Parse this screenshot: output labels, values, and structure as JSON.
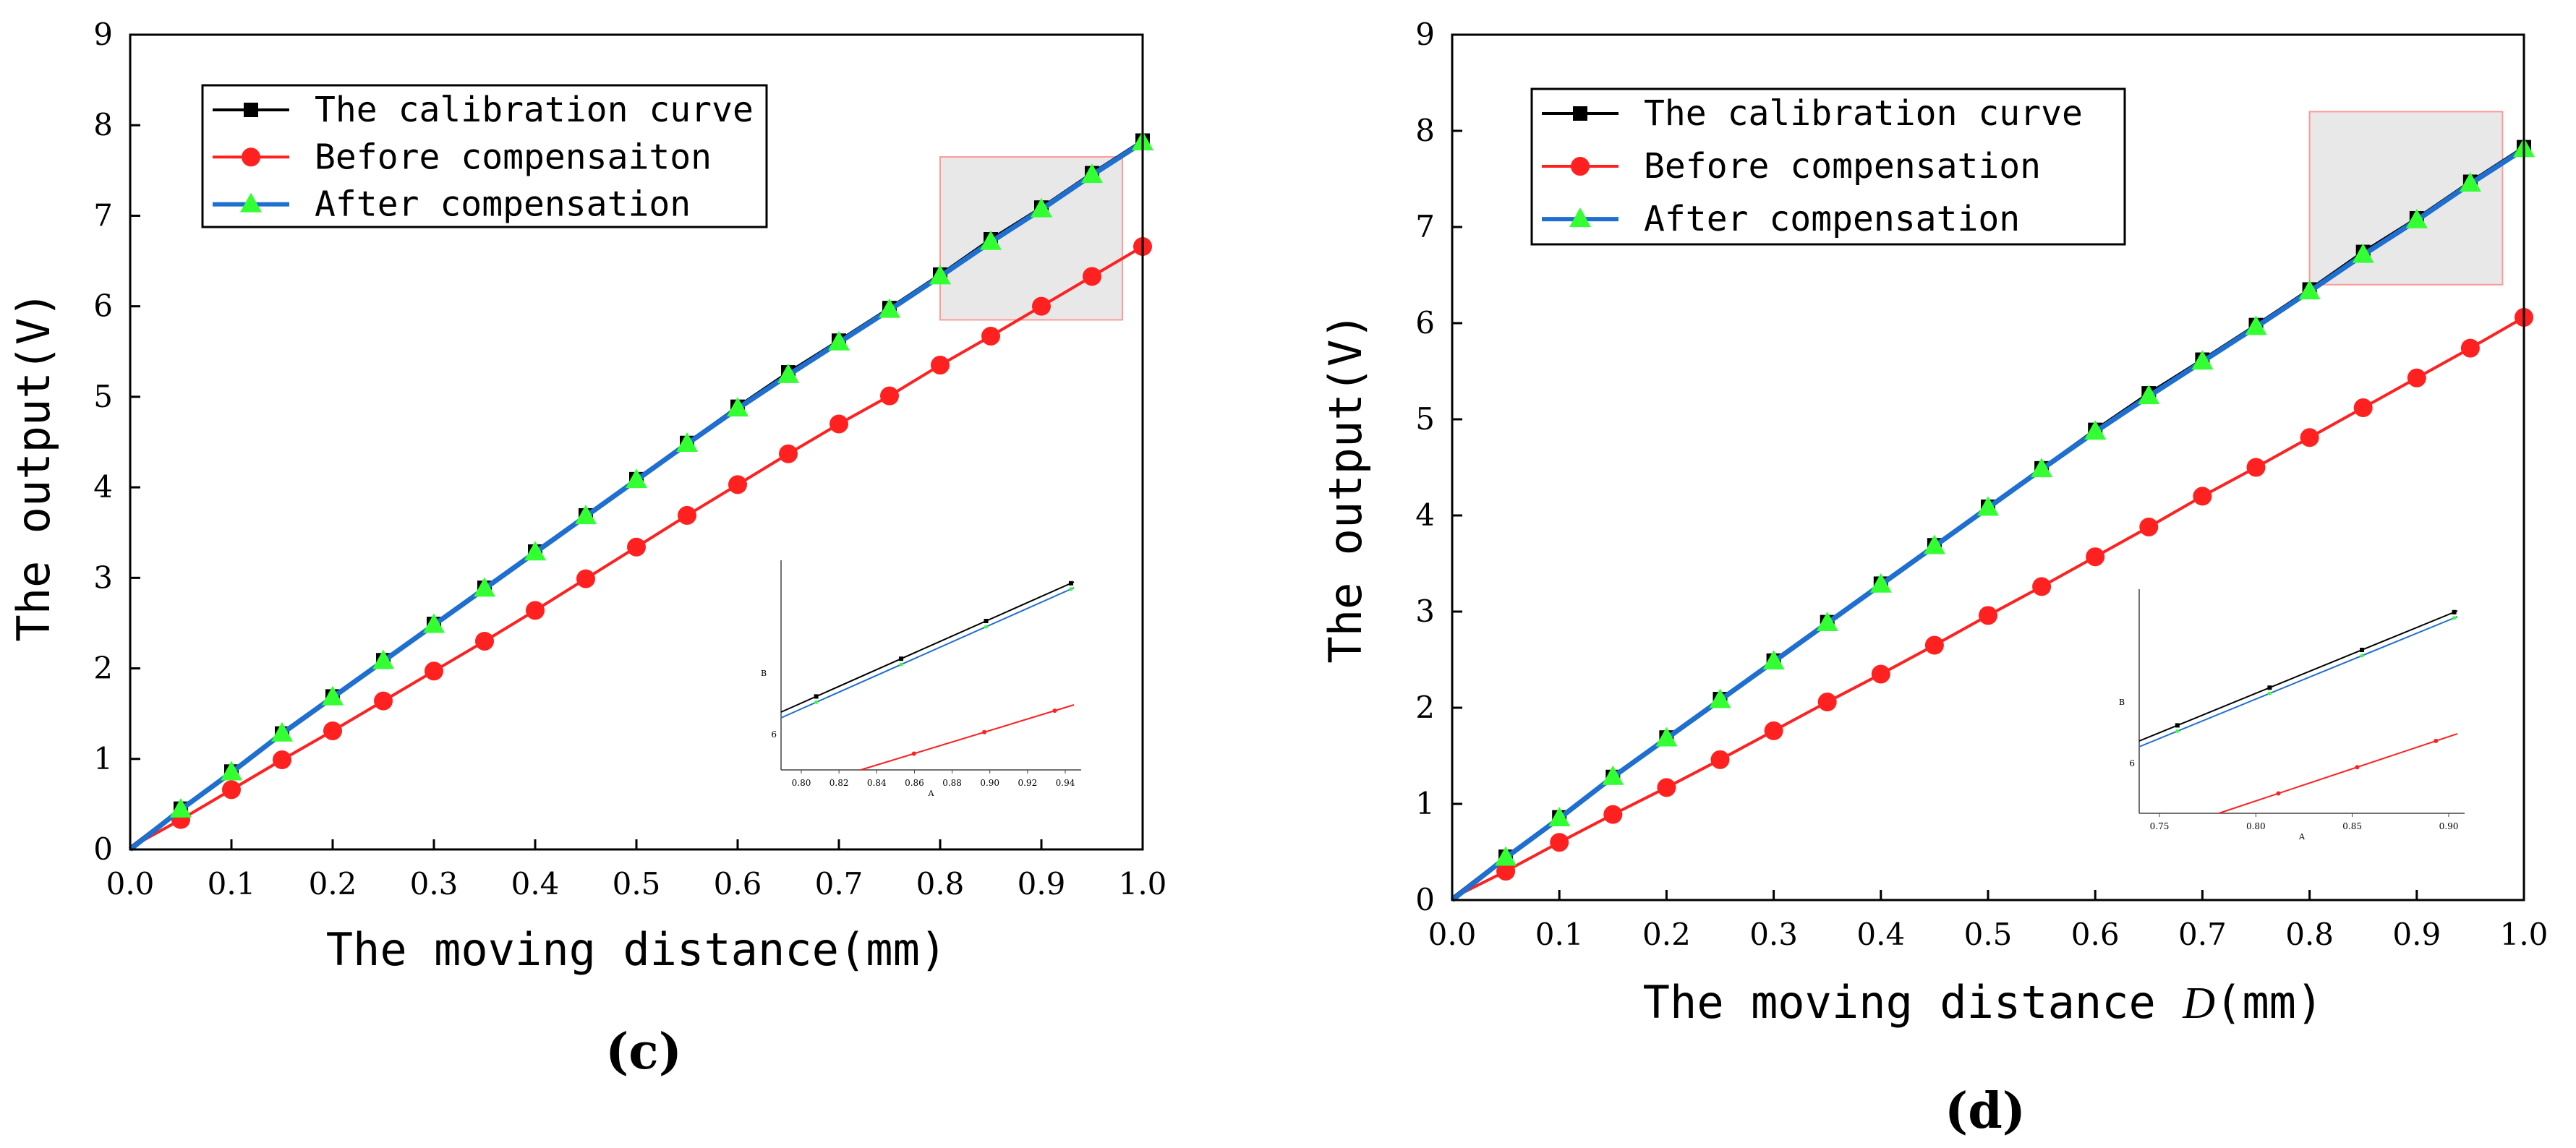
{
  "colors": {
    "calibration": "#000000",
    "before": "#ff2020",
    "after": "#1f6fd0",
    "after_marker": "#33ff33",
    "zoom_fill": "#e8e8e8",
    "zoom_stroke": "#ff9a9a"
  },
  "chart_data": [
    {
      "type": "line",
      "panel_label": "(c)",
      "xlabel": "The moving distance(mm)",
      "ylabel": "The output(V)",
      "xlim": [
        0,
        1.0
      ],
      "ylim": [
        0,
        9
      ],
      "xticks": [
        "0.0",
        "0.1",
        "0.2",
        "0.3",
        "0.4",
        "0.5",
        "0.6",
        "0.7",
        "0.8",
        "0.9",
        "1.0"
      ],
      "yticks": [
        "0",
        "1",
        "2",
        "3",
        "4",
        "5",
        "6",
        "7",
        "8",
        "9"
      ],
      "legend_position": "top-left",
      "x": [
        0,
        0.05,
        0.1,
        0.15,
        0.2,
        0.25,
        0.3,
        0.35,
        0.4,
        0.45,
        0.5,
        0.55,
        0.6,
        0.65,
        0.7,
        0.75,
        0.8,
        0.85,
        0.9,
        0.95,
        1.0
      ],
      "series": [
        {
          "name": "The calibration curve",
          "key": "calibration",
          "marker": "square",
          "values": [
            0.02,
            0.45,
            0.86,
            1.28,
            1.69,
            2.09,
            2.49,
            2.89,
            3.29,
            3.69,
            4.09,
            4.49,
            4.89,
            5.27,
            5.62,
            5.98,
            6.35,
            6.74,
            7.09,
            7.47,
            7.83
          ]
        },
        {
          "name": "Before compensaiton",
          "key": "before",
          "marker": "circle",
          "values": [
            0.02,
            0.33,
            0.66,
            0.99,
            1.31,
            1.64,
            1.97,
            2.3,
            2.64,
            2.99,
            3.34,
            3.69,
            4.03,
            4.37,
            4.7,
            5.01,
            5.35,
            5.67,
            6.0,
            6.33,
            6.66
          ]
        },
        {
          "name": "After compensation",
          "key": "after",
          "marker": "triangle",
          "values": [
            0.0,
            0.44,
            0.85,
            1.28,
            1.68,
            2.08,
            2.48,
            2.88,
            3.28,
            3.68,
            4.08,
            4.48,
            4.87,
            5.24,
            5.6,
            5.96,
            6.33,
            6.71,
            7.07,
            7.45,
            7.81
          ]
        }
      ],
      "zoom_region": {
        "x": [
          0.8,
          0.98
        ],
        "y": [
          5.85,
          7.65
        ]
      },
      "inset": {
        "ylabel": "B",
        "xlabel": "A",
        "xticks": [
          "0.80",
          "0.82",
          "0.84",
          "0.86",
          "0.88",
          "0.90",
          "0.92",
          "0.94"
        ],
        "ytick": "6"
      }
    },
    {
      "type": "line",
      "panel_label": "(d)",
      "xlabel": "The moving distance D(mm)",
      "xlabel_prefix": "The moving distance ",
      "xlabel_var": "D",
      "xlabel_unit": "(mm)",
      "ylabel": "The output(V)",
      "xlim": [
        0,
        1.0
      ],
      "ylim": [
        0,
        9
      ],
      "xticks": [
        "0.0",
        "0.1",
        "0.2",
        "0.3",
        "0.4",
        "0.5",
        "0.6",
        "0.7",
        "0.8",
        "0.9",
        "1.0"
      ],
      "yticks": [
        "0",
        "1",
        "2",
        "3",
        "4",
        "5",
        "6",
        "7",
        "8",
        "9"
      ],
      "legend_position": "top-left",
      "x": [
        0,
        0.05,
        0.1,
        0.15,
        0.2,
        0.25,
        0.3,
        0.35,
        0.4,
        0.45,
        0.5,
        0.55,
        0.6,
        0.65,
        0.7,
        0.75,
        0.8,
        0.85,
        0.9,
        0.95,
        1.0
      ],
      "series": [
        {
          "name": "The calibration curve",
          "key": "calibration",
          "marker": "square",
          "values": [
            0.02,
            0.45,
            0.86,
            1.28,
            1.69,
            2.09,
            2.49,
            2.89,
            3.29,
            3.69,
            4.09,
            4.49,
            4.89,
            5.27,
            5.62,
            5.98,
            6.35,
            6.74,
            7.09,
            7.47,
            7.83
          ]
        },
        {
          "name": "Before compensation",
          "key": "before",
          "marker": "circle",
          "values": [
            0.02,
            0.3,
            0.6,
            0.89,
            1.17,
            1.46,
            1.76,
            2.06,
            2.35,
            2.65,
            2.96,
            3.26,
            3.57,
            3.88,
            4.2,
            4.5,
            4.81,
            5.12,
            5.43,
            5.74,
            6.06
          ]
        },
        {
          "name": "After compensation",
          "key": "after",
          "marker": "triangle",
          "values": [
            0.0,
            0.44,
            0.85,
            1.28,
            1.68,
            2.08,
            2.48,
            2.88,
            3.28,
            3.68,
            4.08,
            4.48,
            4.87,
            5.24,
            5.6,
            5.96,
            6.33,
            6.71,
            7.07,
            7.45,
            7.81
          ]
        }
      ],
      "zoom_region": {
        "x": [
          0.8,
          0.98
        ],
        "y": [
          6.4,
          8.2
        ]
      },
      "inset": {
        "ylabel": "B",
        "xlabel": "A",
        "xticks": [
          "0.75",
          "0.80",
          "0.85",
          "0.90"
        ],
        "ytick": "6"
      }
    }
  ]
}
